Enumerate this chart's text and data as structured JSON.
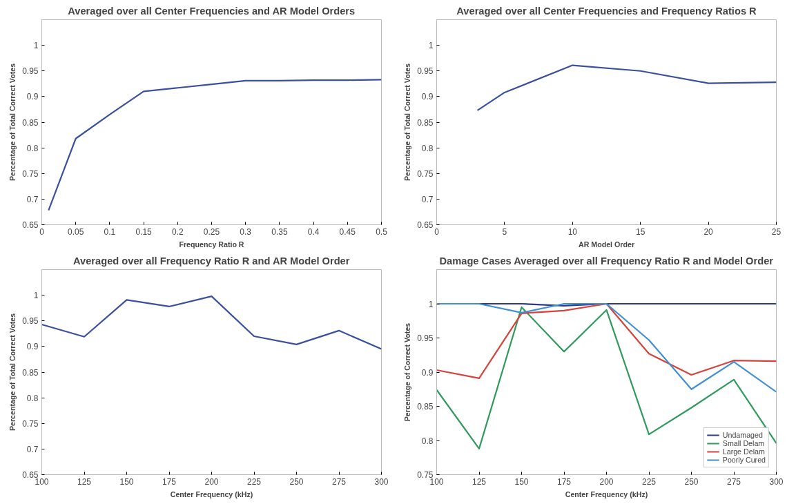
{
  "chart_data": [
    {
      "type": "line",
      "title": "Averaged over all Center Frequencies and AR Model Orders",
      "xlabel": "Frequency Ratio R",
      "ylabel": "Percentage of Total Correct Votes",
      "x": [
        0.01,
        0.05,
        0.1,
        0.15,
        0.2,
        0.25,
        0.3,
        0.35,
        0.4,
        0.45,
        0.5
      ],
      "series": [
        {
          "color": "#3b4fa0",
          "values": [
            0.678,
            0.818,
            0.865,
            0.91,
            0.917,
            0.924,
            0.931,
            0.931,
            0.932,
            0.932,
            0.933
          ]
        }
      ],
      "xlim": [
        0,
        0.5
      ],
      "xticks": [
        0,
        0.05,
        0.1,
        0.15,
        0.2,
        0.25,
        0.3,
        0.35,
        0.4,
        0.45,
        0.5
      ],
      "ylim": [
        0.65,
        1.05
      ],
      "yticks": [
        0.65,
        0.7,
        0.75,
        0.8,
        0.85,
        0.9,
        0.95,
        1
      ],
      "grid": false,
      "line_style": "solid"
    },
    {
      "type": "line",
      "title": "Averaged over all Center Frequencies and Frequency Ratios R",
      "xlabel": "AR Model Order",
      "ylabel": "Percentage of Total Correct Votes",
      "x": [
        3,
        5,
        10,
        15,
        20,
        25
      ],
      "series": [
        {
          "color": "#3b4fa0",
          "values": [
            0.873,
            0.908,
            0.961,
            0.95,
            0.926,
            0.928
          ]
        }
      ],
      "xlim": [
        0,
        25
      ],
      "xticks": [
        0,
        5,
        10,
        15,
        20,
        25
      ],
      "ylim": [
        0.65,
        1.05
      ],
      "yticks": [
        0.65,
        0.7,
        0.75,
        0.8,
        0.85,
        0.9,
        0.95,
        1
      ],
      "grid": false,
      "line_style": "solid"
    },
    {
      "type": "line",
      "title": "Averaged over all Frequency Ratio R and AR Model Order",
      "xlabel": "Center Frequency (kHz)",
      "ylabel": "Percentage of Total Correct Votes",
      "x": [
        100,
        125,
        150,
        175,
        200,
        225,
        250,
        275,
        300
      ],
      "series": [
        {
          "color": "#3b4fa0",
          "values": [
            0.943,
            0.919,
            0.991,
            0.978,
            0.998,
            0.92,
            0.904,
            0.931,
            0.895
          ]
        }
      ],
      "xlim": [
        100,
        300
      ],
      "xticks": [
        100,
        125,
        150,
        175,
        200,
        225,
        250,
        275,
        300
      ],
      "ylim": [
        0.65,
        1.05
      ],
      "yticks": [
        0.65,
        0.7,
        0.75,
        0.8,
        0.85,
        0.9,
        0.95,
        1
      ],
      "grid": false,
      "line_style": "solid"
    },
    {
      "type": "line",
      "title": "Damage Cases Averaged over all Frequency Ratio R and Model Order",
      "xlabel": "Center Frequency (kHz)",
      "ylabel": "Percentage of Correct Votes",
      "x": [
        100,
        125,
        150,
        175,
        200,
        225,
        250,
        275,
        300
      ],
      "series": [
        {
          "name": "Undamaged",
          "color": "#2b3a8f",
          "values": [
            1,
            1,
            1,
            0.997,
            1,
            1,
            1,
            1,
            1
          ]
        },
        {
          "name": "Small Delam",
          "color": "#2e9a5c",
          "values": [
            0.874,
            0.788,
            0.995,
            0.93,
            0.991,
            0.809,
            0.848,
            0.889,
            0.796
          ]
        },
        {
          "name": "Large Delam",
          "color": "#d9403a",
          "values": [
            0.903,
            0.891,
            0.986,
            0.99,
            1,
            0.927,
            0.896,
            0.917,
            0.916
          ]
        },
        {
          "name": "Poorly Cured",
          "color": "#3f8fd6",
          "values": [
            1,
            1,
            0.987,
            1,
            1,
            0.947,
            0.875,
            0.915,
            0.871
          ]
        }
      ],
      "xlim": [
        100,
        300
      ],
      "xticks": [
        100,
        125,
        150,
        175,
        200,
        225,
        250,
        275,
        300
      ],
      "ylim": [
        0.75,
        1.05
      ],
      "yticks": [
        0.75,
        0.8,
        0.85,
        0.9,
        0.95,
        1
      ],
      "grid": false,
      "legend": "bottom right",
      "line_style": "solid"
    }
  ]
}
